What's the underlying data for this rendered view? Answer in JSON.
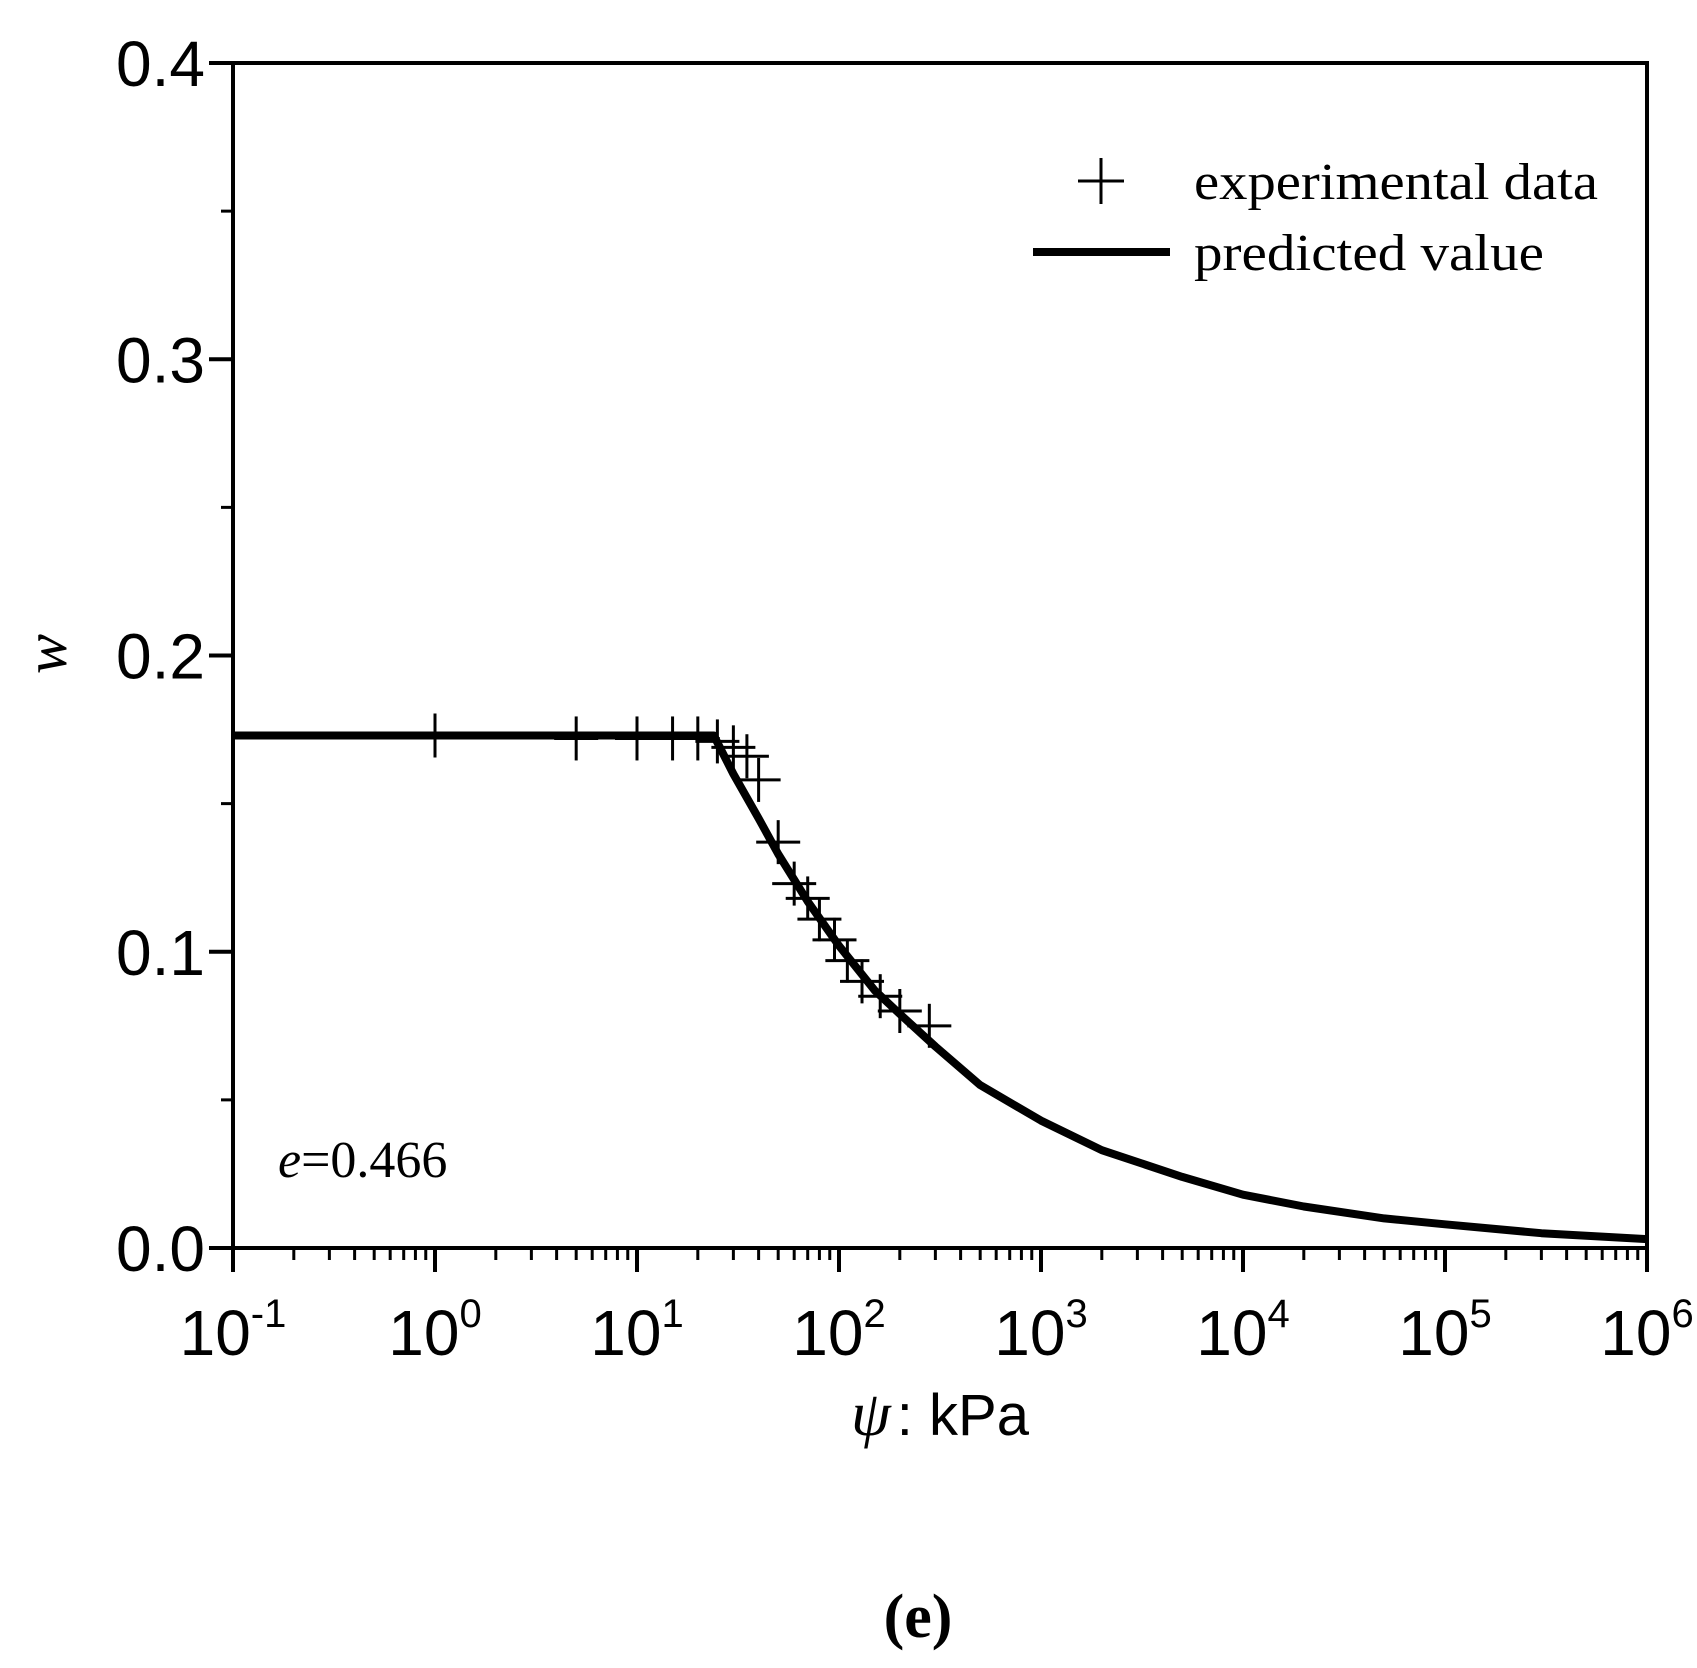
{
  "chart_data": {
    "type": "scatter",
    "title": "",
    "xlabel_symbol": "ψ",
    "xlabel_unit": ": kPa",
    "ylabel": "w",
    "xscale": "log",
    "xlim": [
      0.1,
      1000000
    ],
    "ylim": [
      0.0,
      0.4
    ],
    "x_ticks": [
      {
        "base": "10",
        "exp": "-1",
        "value": 0.1
      },
      {
        "base": "10",
        "exp": "0",
        "value": 1
      },
      {
        "base": "10",
        "exp": "1",
        "value": 10
      },
      {
        "base": "10",
        "exp": "2",
        "value": 100
      },
      {
        "base": "10",
        "exp": "3",
        "value": 1000
      },
      {
        "base": "10",
        "exp": "4",
        "value": 10000
      },
      {
        "base": "10",
        "exp": "5",
        "value": 100000
      },
      {
        "base": "10",
        "exp": "6",
        "value": 1000000
      }
    ],
    "y_ticks": [
      {
        "label": "0.0",
        "value": 0.0
      },
      {
        "label": "0.1",
        "value": 0.1
      },
      {
        "label": "0.2",
        "value": 0.2
      },
      {
        "label": "0.3",
        "value": 0.3
      },
      {
        "label": "0.4",
        "value": 0.4
      }
    ],
    "legend": {
      "placement": "top-right",
      "entries": [
        "experimental data",
        "predicted value"
      ]
    },
    "annotation": {
      "symbol": "e",
      "text": "=0.466"
    },
    "panel_label": "(e)",
    "series": [
      {
        "name": "experimental data",
        "kind": "scatter",
        "marker": "plus",
        "points": [
          [
            1,
            0.173
          ],
          [
            5,
            0.172
          ],
          [
            10,
            0.172
          ],
          [
            15,
            0.172
          ],
          [
            20,
            0.172
          ],
          [
            25,
            0.171
          ],
          [
            30,
            0.169
          ],
          [
            35,
            0.166
          ],
          [
            40,
            0.158
          ],
          [
            50,
            0.137
          ],
          [
            60,
            0.123
          ],
          [
            70,
            0.118
          ],
          [
            80,
            0.111
          ],
          [
            95,
            0.104
          ],
          [
            110,
            0.097
          ],
          [
            130,
            0.09
          ],
          [
            160,
            0.085
          ],
          [
            200,
            0.08
          ],
          [
            280,
            0.075
          ]
        ]
      },
      {
        "name": "predicted value",
        "kind": "line",
        "points": [
          [
            0.1,
            0.173
          ],
          [
            1,
            0.173
          ],
          [
            10,
            0.173
          ],
          [
            24,
            0.173
          ],
          [
            30,
            0.16
          ],
          [
            40,
            0.145
          ],
          [
            50,
            0.133
          ],
          [
            70,
            0.117
          ],
          [
            100,
            0.102
          ],
          [
            150,
            0.087
          ],
          [
            200,
            0.079
          ],
          [
            300,
            0.068
          ],
          [
            500,
            0.055
          ],
          [
            1000,
            0.043
          ],
          [
            2000,
            0.033
          ],
          [
            5000,
            0.024
          ],
          [
            10000,
            0.018
          ],
          [
            20000,
            0.014
          ],
          [
            50000,
            0.01
          ],
          [
            100000,
            0.008
          ],
          [
            300000,
            0.005
          ],
          [
            1000000,
            0.003
          ]
        ]
      }
    ]
  }
}
